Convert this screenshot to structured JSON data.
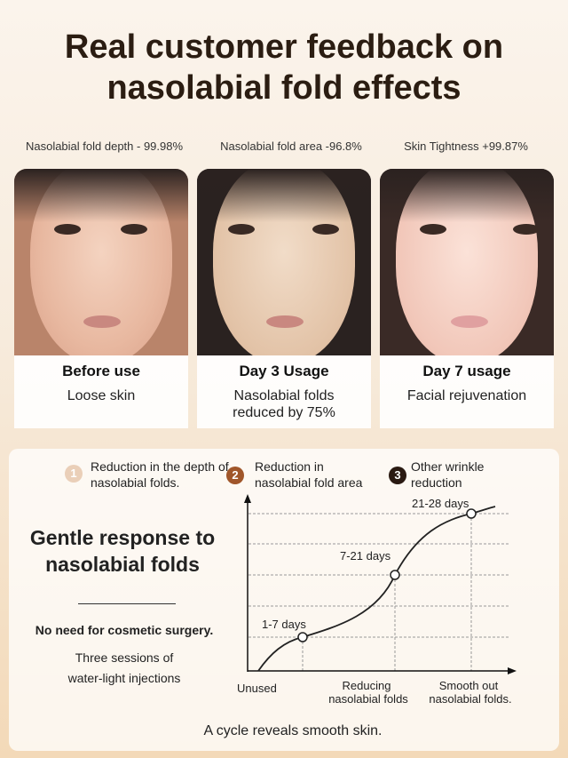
{
  "title": {
    "line1": "Real customer feedback on",
    "line2": "nasolabial fold effects"
  },
  "stats": [
    "Nasolabial fold depth - 99.98%",
    "Nasolabial fold area -96.8%",
    "Skin Tightness +99.87%"
  ],
  "photos": [
    {
      "heading": "Before use",
      "desc": "Loose skin"
    },
    {
      "heading": "Day 3 Usage",
      "desc": "Nasolabial folds reduced by 75%"
    },
    {
      "heading": "Day 7 usage",
      "desc": "Facial rejuvenation"
    }
  ],
  "steps": [
    {
      "num": "1",
      "text": "Reduction in the depth of nasolabial folds.",
      "color": "#eacfb8"
    },
    {
      "num": "2",
      "text": "Reduction in nasolabial fold area",
      "color": "#a0562a"
    },
    {
      "num": "3",
      "text": "Other wrinkle reduction",
      "color": "#2a1a12"
    }
  ],
  "left": {
    "heading": "Gentle response to nasolabial folds",
    "note": "No need for cosmetic surgery.",
    "sessions1": "Three sessions of",
    "sessions2": "water-light injections"
  },
  "chart": {
    "points": [
      "1-7 days",
      "7-21 days",
      "21-28 days"
    ],
    "x_labels": {
      "start": "Unused",
      "mid1": "Reducing",
      "mid2": "nasolabial folds",
      "end1": "Smooth out",
      "end2": "nasolabial folds."
    }
  },
  "footer": "A cycle reveals smooth skin."
}
